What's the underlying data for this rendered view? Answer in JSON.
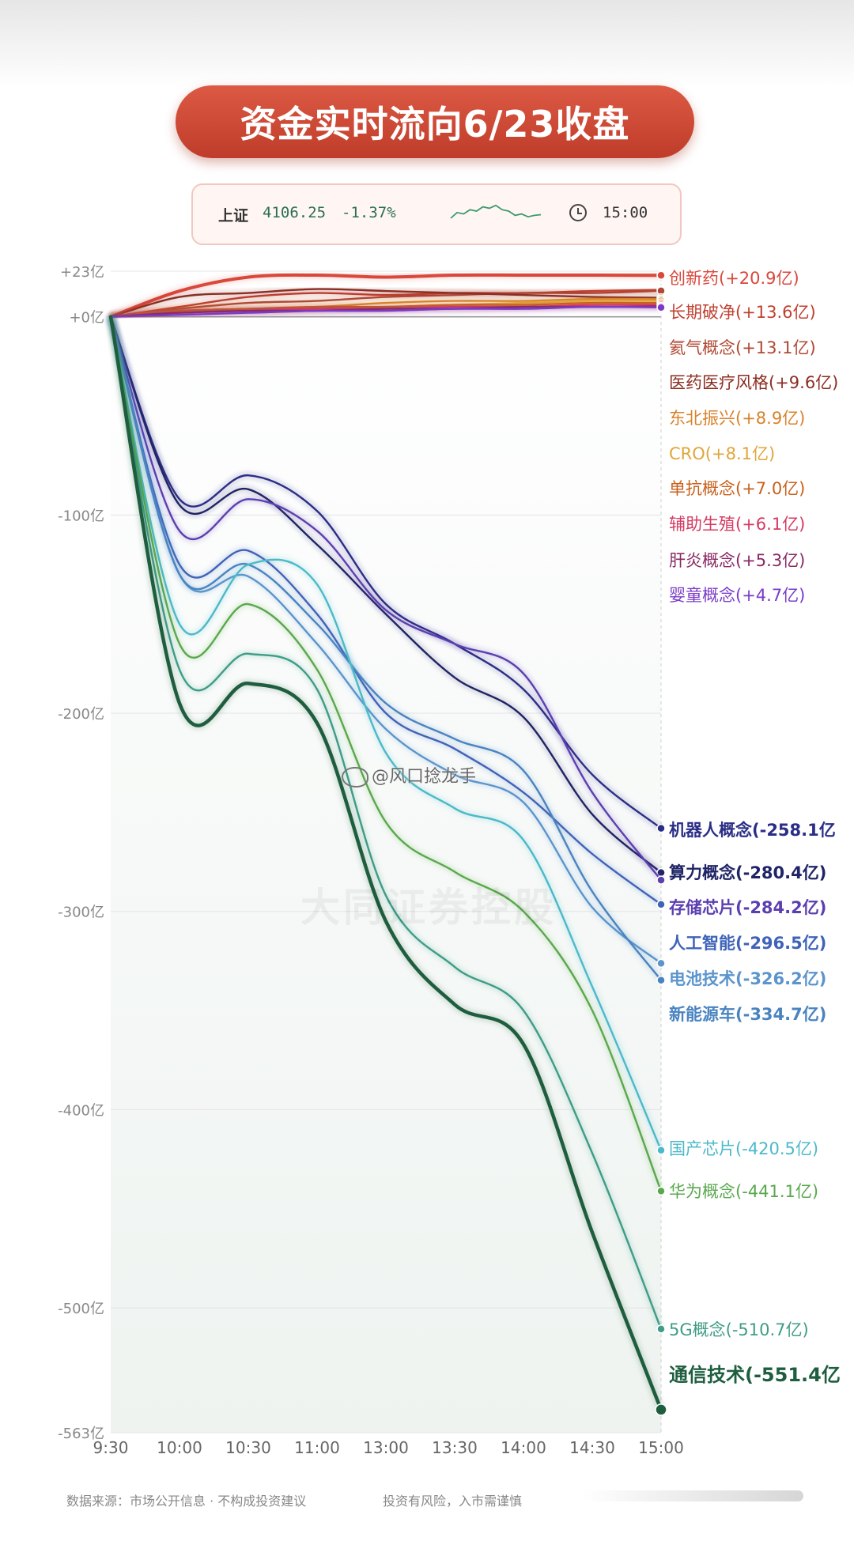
{
  "title": "资金实时流向6/23收盘",
  "index": {
    "name": "上证",
    "value": "4106.25",
    "change": "-1.37%",
    "time": "15:00",
    "icon": "clock-icon",
    "sparkline": [
      0,
      0.4,
      0.3,
      0.6,
      0.5,
      0.8,
      0.7,
      0.9,
      0.6,
      0.5,
      0.2,
      0.3,
      0.1,
      0.2,
      0.25
    ]
  },
  "watermark": {
    "handle": "@风口捻龙手",
    "faint_text": "大同证券控股"
  },
  "footer": {
    "source": "数据来源：市场公开信息 · 不构成投资建议",
    "risk": "投资有风险，入市需谨慎"
  },
  "chart_data": {
    "type": "line",
    "x": [
      "9:30",
      "10:00",
      "10:30",
      "11:00",
      "13:00",
      "13:30",
      "14:00",
      "14:30",
      "15:00"
    ],
    "ylim": [
      -563,
      23
    ],
    "yticks": [
      23,
      0,
      -100,
      -200,
      -300,
      -400,
      -500,
      -563
    ],
    "ytick_labels": [
      "+23亿",
      "+0亿",
      "-100亿",
      "-200亿",
      "-300亿",
      "-400亿",
      "-500亿",
      "-563亿"
    ],
    "grid": true,
    "legend_placement": "right, end-of-line labels",
    "series": [
      {
        "name": "创新药",
        "value_label": "(+20.9亿)",
        "color": "#d9483b",
        "values": [
          0,
          13,
          20,
          21,
          20,
          21,
          21,
          21,
          20.9
        ]
      },
      {
        "name": "长期破净",
        "value_label": "(+13.6亿)",
        "color": "#c04030",
        "values": [
          0,
          5,
          10,
          12,
          11,
          12,
          12,
          13,
          13.6
        ]
      },
      {
        "name": "氦气概念",
        "value_label": "(+13.1亿)",
        "color": "#b04834",
        "values": [
          0,
          4,
          7,
          8,
          10,
          11,
          12,
          12,
          13.1
        ]
      },
      {
        "name": "医药医疗风格",
        "value_label": "(+9.6亿)",
        "color": "#8c2e22",
        "values": [
          0,
          10,
          12,
          14,
          13,
          12,
          11,
          10,
          9.6
        ]
      },
      {
        "name": "东北振兴",
        "value_label": "(+8.9亿)",
        "color": "#d9822b",
        "values": [
          0,
          3,
          4,
          5,
          7,
          8,
          8,
          9,
          8.9
        ]
      },
      {
        "name": "CRO",
        "value_label": "(+8.1亿)",
        "color": "#e0a63a",
        "values": [
          0,
          2,
          3,
          4,
          5,
          6,
          7,
          8,
          8.1
        ]
      },
      {
        "name": "单抗概念",
        "value_label": "(+7.0亿)",
        "color": "#c8611c",
        "values": [
          0,
          3,
          4,
          5,
          5,
          6,
          6,
          7,
          7.0
        ]
      },
      {
        "name": "辅助生殖",
        "value_label": "(+6.1亿)",
        "color": "#d63a63",
        "values": [
          0,
          2,
          3,
          4,
          4,
          5,
          5,
          6,
          6.1
        ]
      },
      {
        "name": "肝炎概念",
        "value_label": "(+5.3亿)",
        "color": "#8a2a63",
        "values": [
          0,
          2,
          3,
          3,
          4,
          4,
          5,
          5,
          5.3
        ]
      },
      {
        "name": "婴童概念",
        "value_label": "(+4.7亿)",
        "color": "#7a3cc8",
        "values": [
          0,
          1,
          2,
          3,
          3,
          4,
          4,
          5,
          4.7
        ]
      },
      {
        "name": "机器人概念",
        "value_label": "(-258.1亿",
        "color": "#2b2e86",
        "values": [
          0,
          -92,
          -80,
          -98,
          -145,
          -165,
          -188,
          -231,
          -258.1
        ]
      },
      {
        "name": "算力概念",
        "value_label": "(-280.4亿)",
        "color": "#1f2466",
        "values": [
          0,
          -95,
          -87,
          -115,
          -150,
          -182,
          -202,
          -251,
          -280.4
        ]
      },
      {
        "name": "存储芯片",
        "value_label": "(-284.2亿)",
        "color": "#5b3fb0",
        "values": [
          0,
          -108,
          -92,
          -108,
          -148,
          -165,
          -180,
          -240,
          -284.2
        ]
      },
      {
        "name": "人工智能",
        "value_label": "(-296.5亿)",
        "color": "#3f63b8",
        "values": [
          0,
          -125,
          -118,
          -150,
          -200,
          -218,
          -240,
          -271,
          -296.5
        ]
      },
      {
        "name": "电池技术",
        "value_label": "(-326.2亿)",
        "color": "#5b95cc",
        "values": [
          0,
          -130,
          -131,
          -165,
          -208,
          -231,
          -245,
          -298,
          -326.2
        ]
      },
      {
        "name": "新能源车",
        "value_label": "(-334.7亿)",
        "color": "#4a84c0",
        "values": [
          0,
          -130,
          -125,
          -155,
          -195,
          -213,
          -229,
          -290,
          -334.7
        ]
      },
      {
        "name": "国产芯片",
        "value_label": "(-420.5亿)",
        "color": "#4cb9c9",
        "values": [
          0,
          -155,
          -125,
          -135,
          -220,
          -248,
          -264,
          -338,
          -420.5
        ]
      },
      {
        "name": "华为概念",
        "value_label": "(-441.1亿)",
        "color": "#5aa84e",
        "values": [
          0,
          -165,
          -145,
          -178,
          -255,
          -280,
          -300,
          -350,
          -441.1
        ]
      },
      {
        "name": "5G概念",
        "value_label": "(-510.7亿)",
        "color": "#3f9c86",
        "values": [
          0,
          -178,
          -170,
          -188,
          -292,
          -328,
          -350,
          -422,
          -510.7
        ]
      },
      {
        "name": "通信技术",
        "value_label": "(-551.4亿",
        "color": "#1e5e3f",
        "values": [
          0,
          -195,
          -185,
          -205,
          -305,
          -347,
          -367,
          -462,
          -551.4
        ]
      }
    ]
  }
}
